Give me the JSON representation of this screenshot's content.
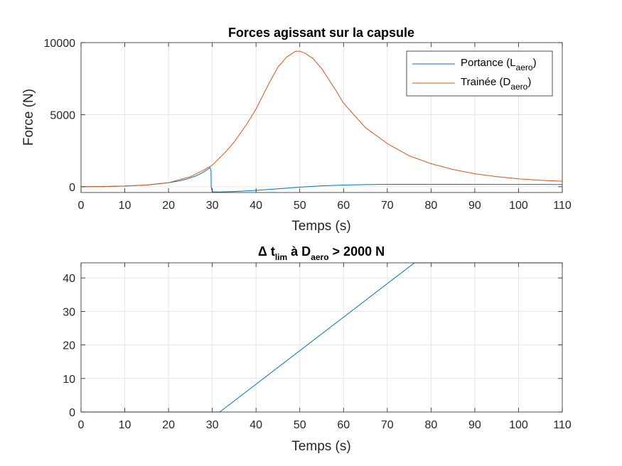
{
  "chart_data": [
    {
      "type": "line",
      "title": "Forces agissant sur la capsule",
      "xlabel": "Temps (s)",
      "ylabel": "Force (N)",
      "xlim": [
        0,
        110
      ],
      "ylim": [
        -400,
        10000
      ],
      "xticks": [
        0,
        10,
        20,
        30,
        40,
        50,
        60,
        70,
        80,
        90,
        100,
        110
      ],
      "yticks": [
        0,
        5000,
        10000
      ],
      "grid": true,
      "legend_position": "top-right",
      "series": [
        {
          "name": "Portance (L",
          "name_sub": "aero",
          "name_suffix": ")",
          "color": "#0072BD",
          "x": [
            0,
            5,
            10,
            15,
            20,
            22,
            24,
            26,
            27,
            28,
            29,
            29.5,
            29.7,
            29.75,
            30,
            31,
            33,
            35,
            40,
            45,
            50,
            55,
            60,
            65,
            70,
            75,
            80,
            85,
            90,
            95,
            100,
            105,
            110
          ],
          "y": [
            0,
            15,
            50,
            120,
            280,
            380,
            520,
            720,
            860,
            1020,
            1220,
            1330,
            1150,
            0,
            -350,
            -360,
            -350,
            -330,
            -250,
            -140,
            -30,
            60,
            120,
            150,
            165,
            170,
            170,
            168,
            165,
            163,
            160,
            158,
            155
          ]
        },
        {
          "name": "Trainée (D",
          "name_sub": "aero",
          "name_suffix": ")",
          "color": "#D95319",
          "x": [
            0,
            5,
            10,
            15,
            20,
            25,
            28,
            30,
            33,
            35,
            38,
            40,
            43,
            45,
            47,
            49,
            50,
            51,
            53,
            55,
            58,
            60,
            65,
            70,
            75,
            80,
            85,
            90,
            95,
            100,
            105,
            110
          ],
          "y": [
            0,
            15,
            50,
            120,
            280,
            700,
            1150,
            1500,
            2400,
            3100,
            4400,
            5400,
            7200,
            8300,
            9000,
            9400,
            9400,
            9300,
            8900,
            8200,
            6800,
            5800,
            4100,
            3000,
            2150,
            1600,
            1200,
            900,
            700,
            550,
            450,
            380
          ]
        }
      ]
    },
    {
      "type": "line",
      "title_prefix": "Δ t",
      "title_sub1": "lim",
      "title_mid": " à D",
      "title_sub2": "aero",
      "title_suffix": " > 2000 N",
      "xlabel": "Temps (s)",
      "ylabel": "",
      "xlim": [
        0,
        110
      ],
      "ylim": [
        0,
        44.5
      ],
      "xticks": [
        0,
        10,
        20,
        30,
        40,
        50,
        60,
        70,
        80,
        90,
        100,
        110
      ],
      "yticks": [
        0,
        10,
        20,
        30,
        40
      ],
      "grid": true,
      "series": [
        {
          "color": "#0072BD",
          "x": [
            0,
            31.7,
            76.2,
            110
          ],
          "y": [
            0,
            0,
            44.5,
            44.5
          ]
        }
      ]
    }
  ]
}
